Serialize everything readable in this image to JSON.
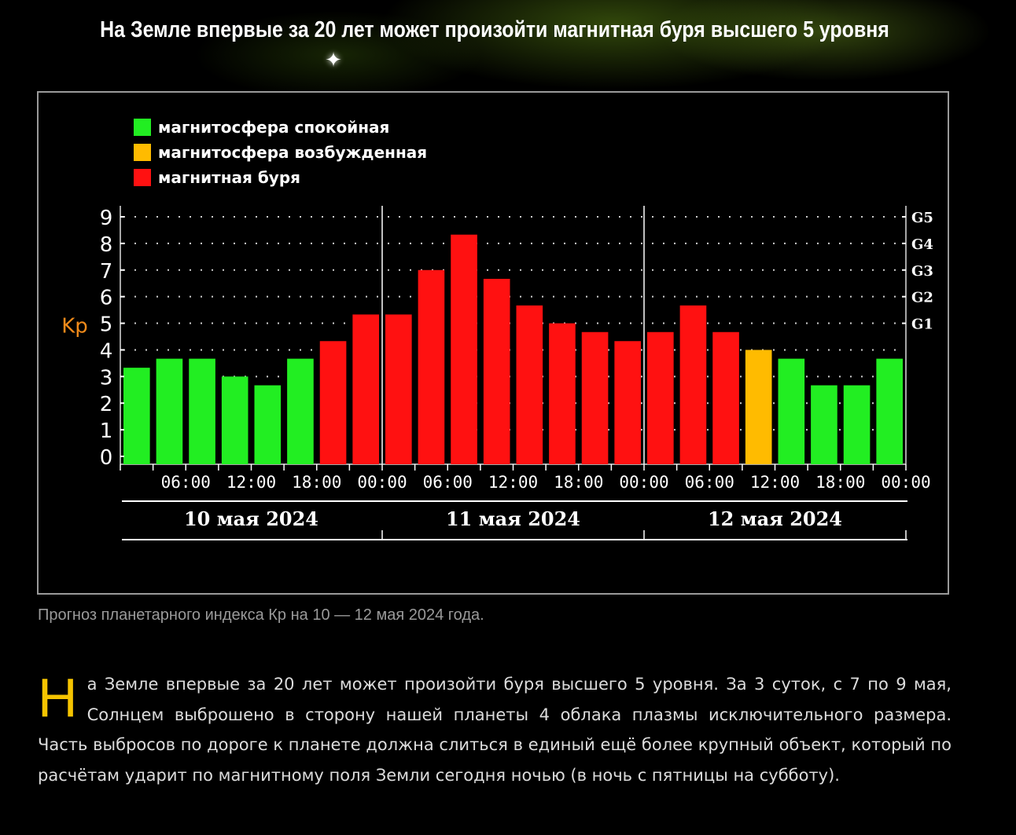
{
  "headline": "На Земле впервые за 20 лет может произойти магнитная буря высшего 5 уровня",
  "caption": "Прогноз планетарного индекса Кр на 10 — 12 мая 2024 года.",
  "article": {
    "dropcap": "Н",
    "text": "а Земле впервые за 20 лет может произойти буря высшего 5 уровня. За 3 суток, с 7 по 9 мая, Солнцем выброшено в сторону нашей планеты 4 облака плазмы исключительного размера. Часть выбросов по дороге к планете должна слиться в единый ещё более крупный объект, который по расчётам ударит по магнитному поля Земли сегодня ночью (в ночь с пятницы на субботу)."
  },
  "colors": {
    "quiet": "#22ee22",
    "excited": "#ffbb00",
    "storm": "#ff1111",
    "kp_label": "#f08a1a",
    "dropcap": "#f5c400"
  },
  "chart_data": {
    "type": "bar",
    "title": "",
    "ylabel": "Kp",
    "ylim": [
      0,
      9
    ],
    "yticks": [
      "0",
      "1",
      "2",
      "3",
      "4",
      "5",
      "6",
      "7",
      "8",
      "9"
    ],
    "g_levels": [
      "G1",
      "G2",
      "G3",
      "G4",
      "G5"
    ],
    "g_level_kp": [
      5,
      6,
      7,
      8,
      9
    ],
    "grid": true,
    "legend_position": "top-left",
    "legend": [
      {
        "label": "магнитосфера спокойная",
        "status": "quiet"
      },
      {
        "label": "магнитосфера возбужденная",
        "status": "excited"
      },
      {
        "label": "магнитная буря",
        "status": "storm"
      }
    ],
    "time_ticks": [
      "06:00",
      "12:00",
      "18:00",
      "00:00",
      "06:00",
      "12:00",
      "18:00",
      "00:00",
      "06:00",
      "12:00",
      "18:00",
      "00:00"
    ],
    "days": [
      "10 мая 2024",
      "11 мая 2024",
      "12 мая 2024"
    ],
    "values": [
      3.33,
      3.67,
      3.67,
      3.0,
      2.67,
      3.67,
      4.33,
      5.33,
      5.33,
      7.0,
      8.33,
      6.67,
      5.67,
      5.0,
      4.67,
      4.33,
      4.67,
      5.67,
      4.67,
      4.0,
      3.67,
      2.67,
      2.67,
      3.67
    ],
    "status": [
      "quiet",
      "quiet",
      "quiet",
      "quiet",
      "quiet",
      "quiet",
      "storm",
      "storm",
      "storm",
      "storm",
      "storm",
      "storm",
      "storm",
      "storm",
      "storm",
      "storm",
      "storm",
      "storm",
      "storm",
      "excited",
      "quiet",
      "quiet",
      "quiet",
      "quiet"
    ]
  }
}
